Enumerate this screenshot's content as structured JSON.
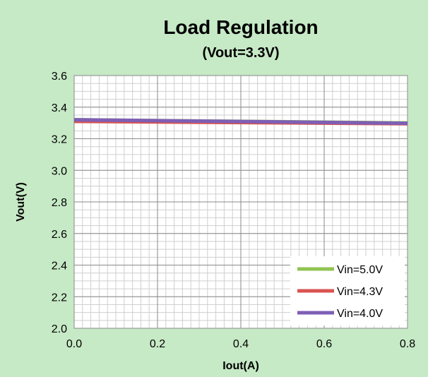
{
  "chart_data": {
    "type": "line",
    "title": "Load Regulation",
    "subtitle": "(Vout=3.3V)",
    "xlabel": "Iout(A)",
    "ylabel": "Vout(V)",
    "xlim": [
      0.0,
      0.8
    ],
    "ylim": [
      2.0,
      3.6
    ],
    "xticks": [
      "0.0",
      "0.2",
      "0.4",
      "0.6",
      "0.8"
    ],
    "yticks": [
      "2.0",
      "2.2",
      "2.4",
      "2.6",
      "2.8",
      "3.0",
      "3.2",
      "3.4",
      "3.6"
    ],
    "grid": true,
    "legend_position": "bottom-right",
    "background_color": "#c6e9c6",
    "plot_background_color": "#ffffff",
    "x": [
      0.0,
      0.8
    ],
    "series": [
      {
        "name": "Vin=5.0V",
        "color": "#92c353",
        "values": [
          3.32,
          3.3
        ]
      },
      {
        "name": "Vin=4.3V",
        "color": "#d9534f",
        "values": [
          3.31,
          3.295
        ]
      },
      {
        "name": "Vin=4.0V",
        "color": "#7e5fb5",
        "values": [
          3.32,
          3.298
        ]
      }
    ]
  }
}
